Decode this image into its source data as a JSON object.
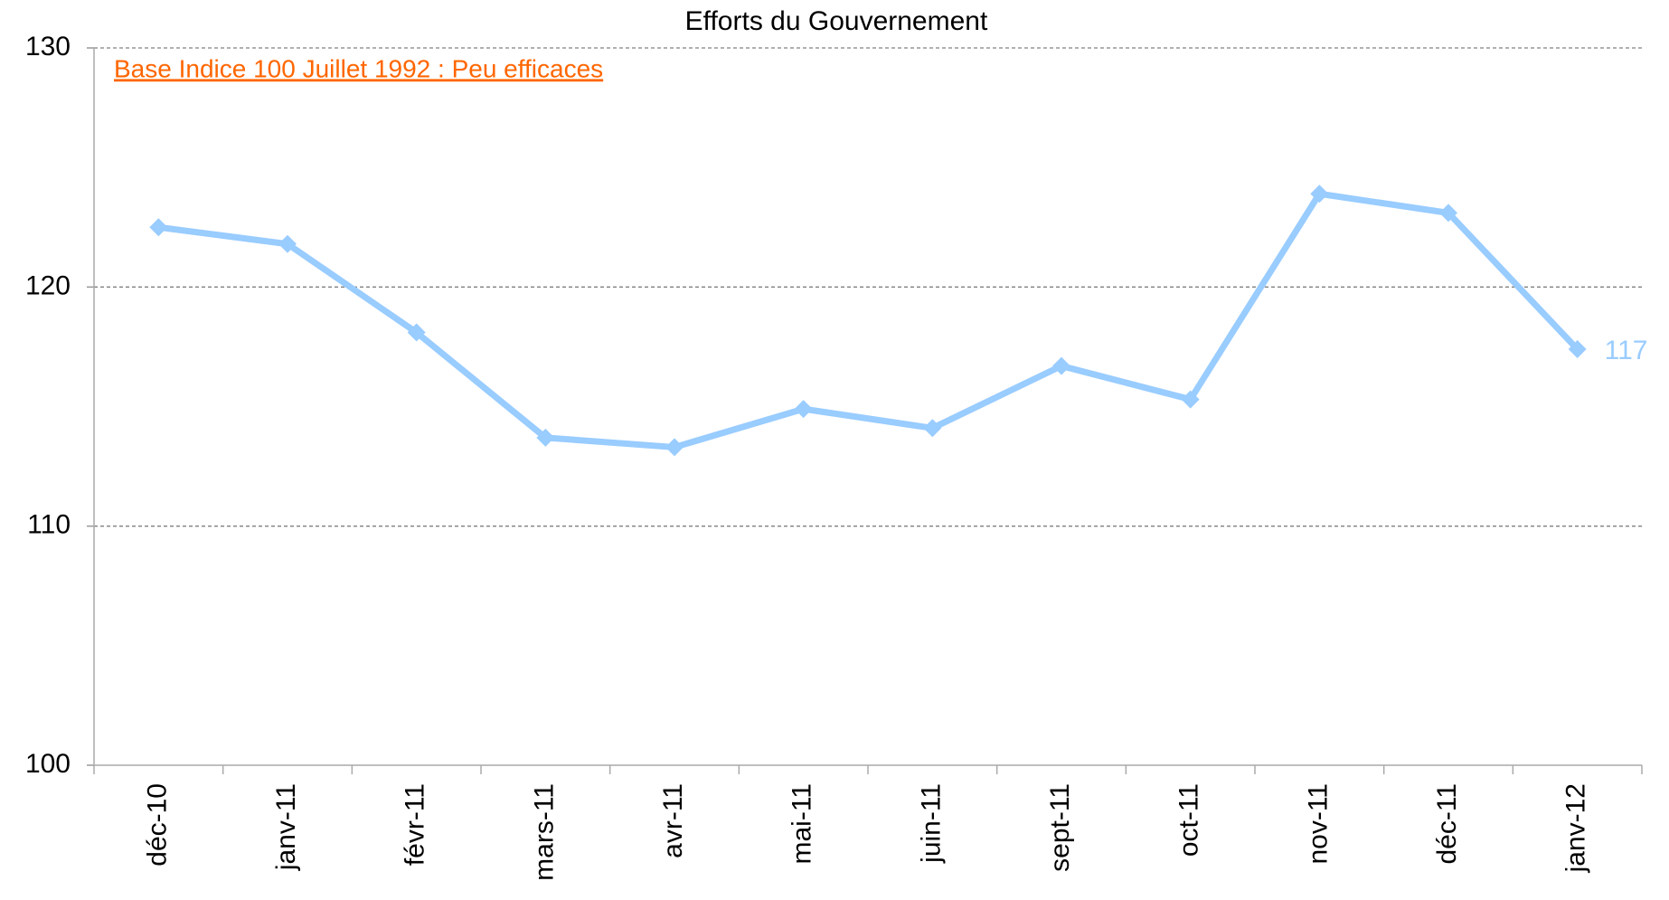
{
  "chart_data": {
    "type": "line",
    "title": "Efforts du Gouvernement",
    "annotation": "Base Indice 100 Juillet 1992 : Peu efficaces",
    "categories": [
      "déc-10",
      "janv-11",
      "févr-11",
      "mars-11",
      "avr-11",
      "mai-11",
      "juin-11",
      "sept-11",
      "oct-11",
      "nov-11",
      "déc-11",
      "janv-12"
    ],
    "series": [
      {
        "name": "Efforts du Gouvernement",
        "color": "#99ccff",
        "values": [
          122.5,
          121.8,
          118.1,
          113.7,
          113.3,
          114.9,
          114.1,
          116.7,
          115.3,
          123.9,
          123.1,
          117.4
        ],
        "value_labels": [
          null,
          null,
          null,
          null,
          null,
          null,
          null,
          null,
          null,
          null,
          null,
          "117"
        ]
      }
    ],
    "ylim": [
      100,
      130
    ],
    "yticks": [
      100,
      110,
      120,
      130
    ],
    "grid": true
  }
}
